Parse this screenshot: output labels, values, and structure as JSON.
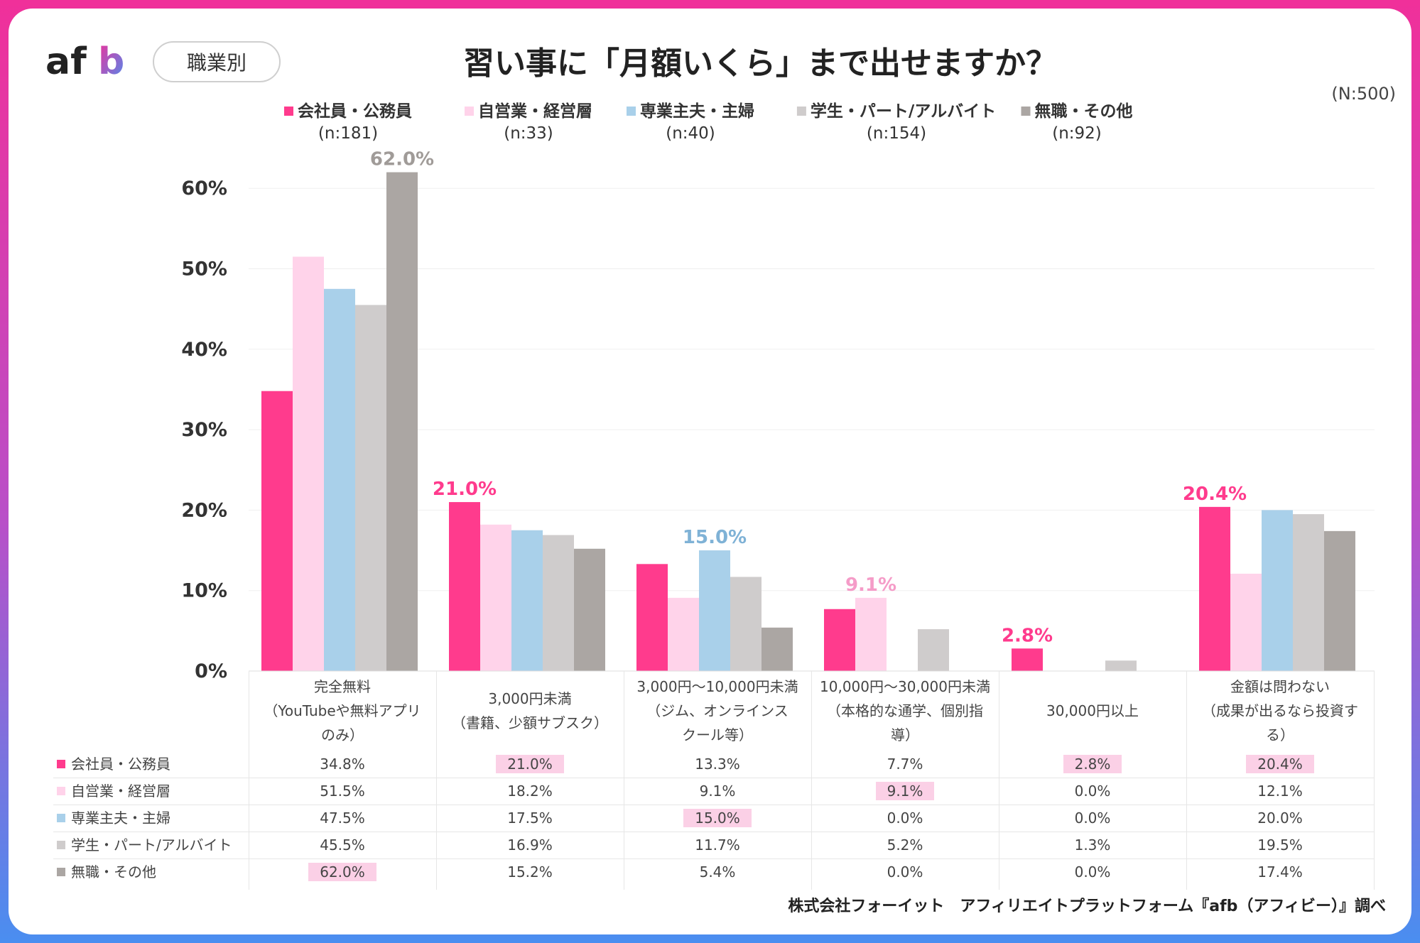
{
  "header": {
    "logo_text": "afb",
    "tag": "職業別",
    "title": "習い事に「月額いくら」まで出せますか？",
    "total_n": "(N:500)"
  },
  "colors": {
    "series": [
      "#ff3b8d",
      "#ffd3ea",
      "#a9d0ea",
      "#cfcccc",
      "#aba6a3"
    ],
    "highlight_cell": "#fbd0e6",
    "gradient_frame": [
      "#f0309a",
      "#4a8ef0"
    ]
  },
  "legend": [
    {
      "name": "会社員・公務員",
      "n": "(n:181)"
    },
    {
      "name": "自営業・経営層",
      "n": "(n:33)"
    },
    {
      "name": "専業主夫・主婦",
      "n": "(n:40)"
    },
    {
      "name": "学生・パート/アルバイト",
      "n": "(n:154)"
    },
    {
      "name": "無職・その他",
      "n": "(n:92)"
    }
  ],
  "chart_data": {
    "type": "bar",
    "title": "習い事に「月額いくら」まで出せますか？",
    "categories": [
      "完全無料\n（YouTubeや無料アプリのみ）",
      "3,000円未満\n（書籍、少額サブスク）",
      "3,000円～10,000円未満\n（ジム、オンラインスクール等）",
      "10,000円～30,000円未満\n（本格的な通学、個別指導）",
      "30,000円以上",
      "金額は問わない\n（成果が出るなら投資する）"
    ],
    "category_display": [
      "完全無料\n（YouTubeや無料アプリ\nのみ）",
      "3,000円未満\n（書籍、少額サブスク）",
      "3,000円～10,000円未満\n（ジム、オンラインス\nクール等）",
      "10,000円～30,000円未満\n（本格的な通学、個別指\n導）",
      "30,000円以上",
      "金額は問わない\n（成果が出るなら投資す\nる）"
    ],
    "series": [
      {
        "name": "会社員・公務員",
        "values": [
          34.8,
          21.0,
          13.3,
          7.7,
          2.8,
          20.4
        ]
      },
      {
        "name": "自営業・経営層",
        "values": [
          51.5,
          18.2,
          9.1,
          9.1,
          0.0,
          12.1
        ]
      },
      {
        "name": "専業主夫・主婦",
        "values": [
          47.5,
          17.5,
          15.0,
          0.0,
          0.0,
          20.0
        ]
      },
      {
        "name": "学生・パート/アルバイト",
        "values": [
          45.5,
          16.9,
          11.7,
          5.2,
          1.3,
          19.5
        ]
      },
      {
        "name": "無職・その他",
        "values": [
          62.0,
          15.2,
          5.4,
          0.0,
          0.0,
          17.4
        ]
      }
    ],
    "yticks": [
      "0%",
      "10%",
      "20%",
      "30%",
      "40%",
      "50%",
      "60%"
    ],
    "ylim": [
      0,
      62
    ],
    "grid": true,
    "legend_position": "top",
    "annotations": [
      {
        "category": 0,
        "series": 4,
        "text": "62.0%"
      },
      {
        "category": 1,
        "series": 0,
        "text": "21.0%"
      },
      {
        "category": 2,
        "series": 2,
        "text": "15.0%"
      },
      {
        "category": 3,
        "series": 1,
        "text": "9.1%"
      },
      {
        "category": 4,
        "series": 0,
        "text": "2.8%"
      },
      {
        "category": 5,
        "series": 0,
        "text": "20.4%"
      }
    ],
    "table": {
      "rows": [
        {
          "label": "会社員・公務員",
          "cells": [
            "34.8%",
            "21.0%",
            "13.3%",
            "7.7%",
            "2.8%",
            "20.4%"
          ],
          "highlight": [
            1,
            4,
            5
          ]
        },
        {
          "label": "自営業・経営層",
          "cells": [
            "51.5%",
            "18.2%",
            "9.1%",
            "9.1%",
            "0.0%",
            "12.1%"
          ],
          "highlight": [
            3
          ]
        },
        {
          "label": "専業主夫・主婦",
          "cells": [
            "47.5%",
            "17.5%",
            "15.0%",
            "0.0%",
            "0.0%",
            "20.0%"
          ],
          "highlight": [
            2
          ]
        },
        {
          "label": "学生・パート/アルバイト",
          "cells": [
            "45.5%",
            "16.9%",
            "11.7%",
            "5.2%",
            "1.3%",
            "19.5%"
          ],
          "highlight": []
        },
        {
          "label": "無職・その他",
          "cells": [
            "62.0%",
            "15.2%",
            "5.4%",
            "0.0%",
            "0.0%",
            "17.4%"
          ],
          "highlight": [
            0
          ]
        }
      ]
    }
  },
  "footer": {
    "source": "株式会社フォーイット　アフィリエイトプラットフォーム『afb（アフィビー）』調べ"
  }
}
